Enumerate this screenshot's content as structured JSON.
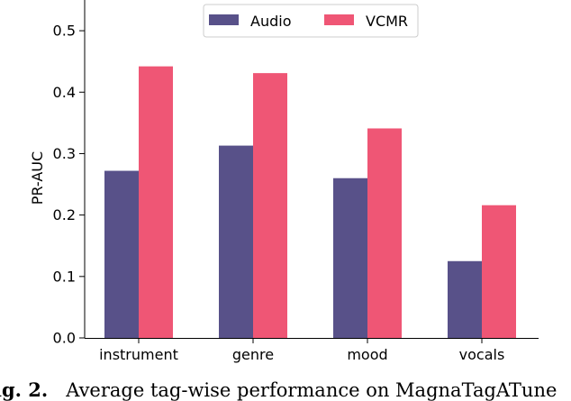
{
  "chart_data": {
    "type": "bar",
    "categories": [
      "instrument",
      "genre",
      "mood",
      "vocals"
    ],
    "series": [
      {
        "name": "Audio",
        "color": "#585189",
        "values": [
          0.272,
          0.313,
          0.26,
          0.125
        ]
      },
      {
        "name": "VCMR",
        "color": "#ef5675",
        "values": [
          0.442,
          0.431,
          0.341,
          0.216
        ]
      }
    ],
    "ylabel": "PR-AUC",
    "xlabel": "",
    "ylim": [
      0.0,
      0.55
    ],
    "yticks": [
      "0.0",
      "0.1",
      "0.2",
      "0.3",
      "0.4",
      "0.5"
    ],
    "legend_position": "top-center",
    "grid": false
  },
  "caption": {
    "label": "ig. 2.",
    "text": "Average tag-wise performance on MagnaTagATune"
  }
}
